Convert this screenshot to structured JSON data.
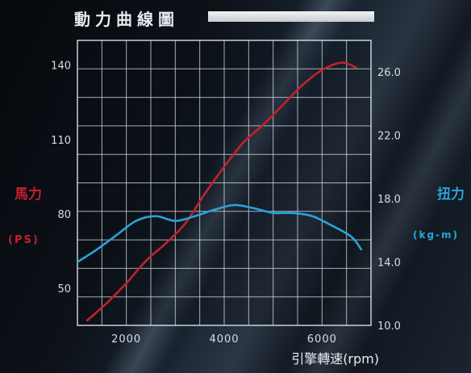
{
  "title": "動力曲線圖",
  "chart_data": {
    "type": "line",
    "title": "動力曲線圖",
    "xlabel": "引擎轉速(rpm)",
    "ylabel_left": "馬力",
    "ylabel_left_unit": "(PS)",
    "ylabel_right": "扭力",
    "ylabel_right_unit": "(kg-m)",
    "xlim": [
      1000,
      7000
    ],
    "ylim_left": [
      35,
      150
    ],
    "ylim_right": [
      10.0,
      28.0
    ],
    "x_ticks": [
      "2000",
      "4000",
      "6000"
    ],
    "y_left_ticks": [
      "50",
      "80",
      "110",
      "140"
    ],
    "y_right_ticks": [
      "10.0",
      "14.0",
      "18.0",
      "22.0",
      "26.0"
    ],
    "grid": true,
    "series": [
      {
        "name": "馬力",
        "axis": "left",
        "color": "#c4202e",
        "x": [
          1200,
          1600,
          2000,
          2400,
          2800,
          3200,
          3600,
          4000,
          4400,
          4800,
          5200,
          5600,
          6000,
          6400,
          6700
        ],
        "y": [
          37,
          44,
          52,
          61,
          68,
          76,
          88,
          99,
          109,
          116,
          124,
          132,
          138,
          141,
          139
        ]
      },
      {
        "name": "扭力",
        "axis": "right",
        "color": "#2aa3d8",
        "x": [
          1000,
          1400,
          1800,
          2200,
          2600,
          3000,
          3400,
          3800,
          4200,
          4600,
          5000,
          5400,
          5800,
          6200,
          6600,
          6800
        ],
        "y": [
          14.0,
          14.8,
          15.7,
          16.6,
          16.9,
          16.6,
          16.9,
          17.3,
          17.6,
          17.4,
          17.1,
          17.1,
          16.9,
          16.3,
          15.6,
          14.8
        ]
      }
    ]
  }
}
